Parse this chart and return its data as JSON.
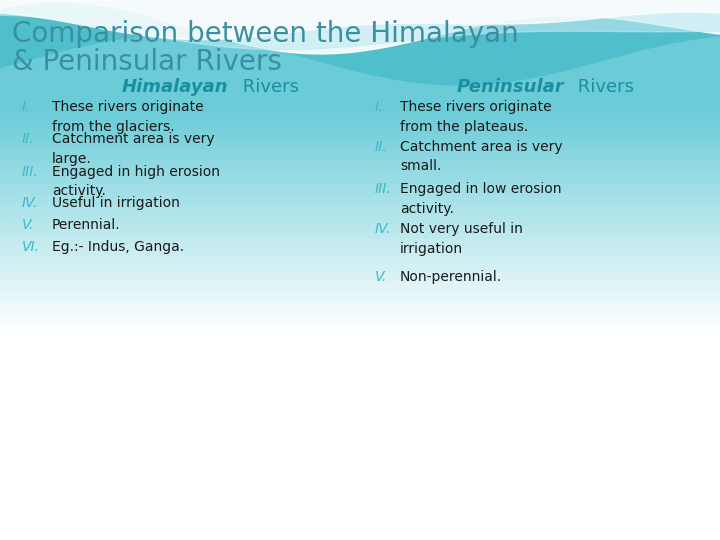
{
  "title_line1": "Comparison between the Himalayan",
  "title_line2": "& Peninsular Rivers",
  "title_color": "#3a8fa0",
  "title_fontsize": 20,
  "col1_header_bold": "Himalayan",
  "col1_header_normal": " Rivers",
  "col2_header_bold": "Peninsular",
  "col2_header_normal": " Rivers",
  "header_color": "#1a8fa0",
  "roman_color": "#3ab8cc",
  "text_color": "#1a1a1a",
  "himalayan_items": [
    [
      "I.",
      "These rivers originate\nfrom the glaciers."
    ],
    [
      "II.",
      "Catchment area is very\nlarge."
    ],
    [
      "III.",
      "Engaged in high erosion\nactivity."
    ],
    [
      "IV.",
      "Useful in irrigation"
    ],
    [
      "V.",
      "Perennial."
    ],
    [
      "VI.",
      "Eg.:- Indus, Ganga."
    ]
  ],
  "peninsular_items": [
    [
      "I.",
      "These rivers originate\nfrom the plateaus."
    ],
    [
      "II.",
      "Catchment area is very\nsmall."
    ],
    [
      "III.",
      "Engaged in low erosion\nactivity."
    ],
    [
      "IV.",
      "Not very useful in\nirrigation"
    ],
    [
      "V.",
      "Non-perennial."
    ]
  ],
  "wave_color1": "#7dd8e8",
  "wave_color2": "#b0e8f0",
  "wave_color3": "#d8f4f8"
}
